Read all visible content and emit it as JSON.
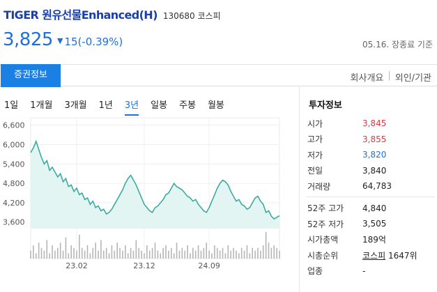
{
  "header": {
    "stock_name": "TIGER 원유선물Enhanced(H)",
    "stock_code": "130680",
    "market": "코스피"
  },
  "price": {
    "current": "3,825",
    "direction_icon": "down-triangle-icon",
    "change": "15(-0.39%)",
    "date_note": "05.16. 장종료 기준"
  },
  "tabs": {
    "active": "증권정보",
    "links": [
      "회사개요",
      "외인/기관"
    ]
  },
  "period_tabs": [
    "1일",
    "1개월",
    "3개월",
    "1년",
    "3년",
    "일봉",
    "주봉",
    "월봉"
  ],
  "period_active_index": 4,
  "chart_data": {
    "type": "area",
    "ylim": [
      3400,
      6700
    ],
    "yticks": [
      "6,600",
      "6,000",
      "5,400",
      "4,800",
      "4,200",
      "3,600"
    ],
    "ytick_values": [
      6600,
      6000,
      5400,
      4800,
      4200,
      3600
    ],
    "xticks": [
      "23.02",
      "23.12",
      "24.09"
    ],
    "xtick_index": [
      17,
      42,
      66
    ],
    "values": [
      5750,
      5900,
      6100,
      5850,
      5600,
      5400,
      5500,
      5200,
      5300,
      5150,
      5000,
      5100,
      4850,
      4950,
      4700,
      4750,
      4550,
      4650,
      4450,
      4500,
      4300,
      4350,
      4150,
      4250,
      4050,
      4100,
      3950,
      4000,
      3850,
      3900,
      4000,
      4150,
      4300,
      4450,
      4600,
      4800,
      4950,
      5050,
      4900,
      4750,
      4550,
      4350,
      4150,
      4050,
      3950,
      3900,
      4050,
      4100,
      4200,
      4300,
      4450,
      4500,
      4650,
      4800,
      4700,
      4650,
      4600,
      4500,
      4400,
      4350,
      4250,
      4300,
      4150,
      4050,
      3950,
      3900,
      4050,
      4250,
      4450,
      4650,
      4800,
      4900,
      4850,
      4750,
      4550,
      4400,
      4250,
      4300,
      4150,
      4100,
      4000,
      4050,
      4200,
      4350,
      4400,
      4250,
      4150,
      3900,
      3950,
      3780,
      3700,
      3750,
      3800
    ],
    "volume": [
      3,
      5,
      2,
      6,
      4,
      3,
      7,
      2,
      5,
      3,
      4,
      6,
      3,
      8,
      2,
      5,
      4,
      3,
      9,
      4,
      3,
      5,
      2,
      4,
      6,
      3,
      7,
      3,
      4,
      2,
      5,
      3,
      6,
      4,
      3,
      5,
      2,
      4,
      3,
      7,
      4,
      3,
      2,
      5,
      3,
      4,
      6,
      3,
      2,
      4,
      5,
      3,
      4,
      2,
      6,
      3,
      4,
      3,
      5,
      2,
      4,
      3,
      5,
      3,
      4,
      6,
      3,
      2,
      5,
      4,
      3,
      4,
      2,
      5,
      3,
      4,
      3,
      2,
      4,
      3,
      5,
      2,
      4,
      3,
      4,
      3,
      5,
      10,
      6,
      4,
      5,
      4,
      3
    ],
    "line_color": "#3aaba0",
    "fill_color": "#e3f5f2"
  },
  "info": {
    "title": "투자정보",
    "rows": [
      {
        "label": "시가",
        "value": "3,845",
        "color": "red"
      },
      {
        "label": "고가",
        "value": "3,855",
        "color": "red"
      },
      {
        "label": "저가",
        "value": "3,820",
        "color": "blue"
      },
      {
        "label": "전일",
        "value": "3,840",
        "color": ""
      },
      {
        "label": "거래량",
        "value": "64,783",
        "color": ""
      }
    ],
    "rows2": [
      {
        "label": "52주 고가",
        "value": "4,840"
      },
      {
        "label": "52주 저가",
        "value": "3,505"
      },
      {
        "label": "시가총액",
        "value": "189억"
      },
      {
        "label": "시총순위",
        "link": "코스피",
        "value": "1647위"
      },
      {
        "label": "업종",
        "value": "-"
      }
    ]
  }
}
